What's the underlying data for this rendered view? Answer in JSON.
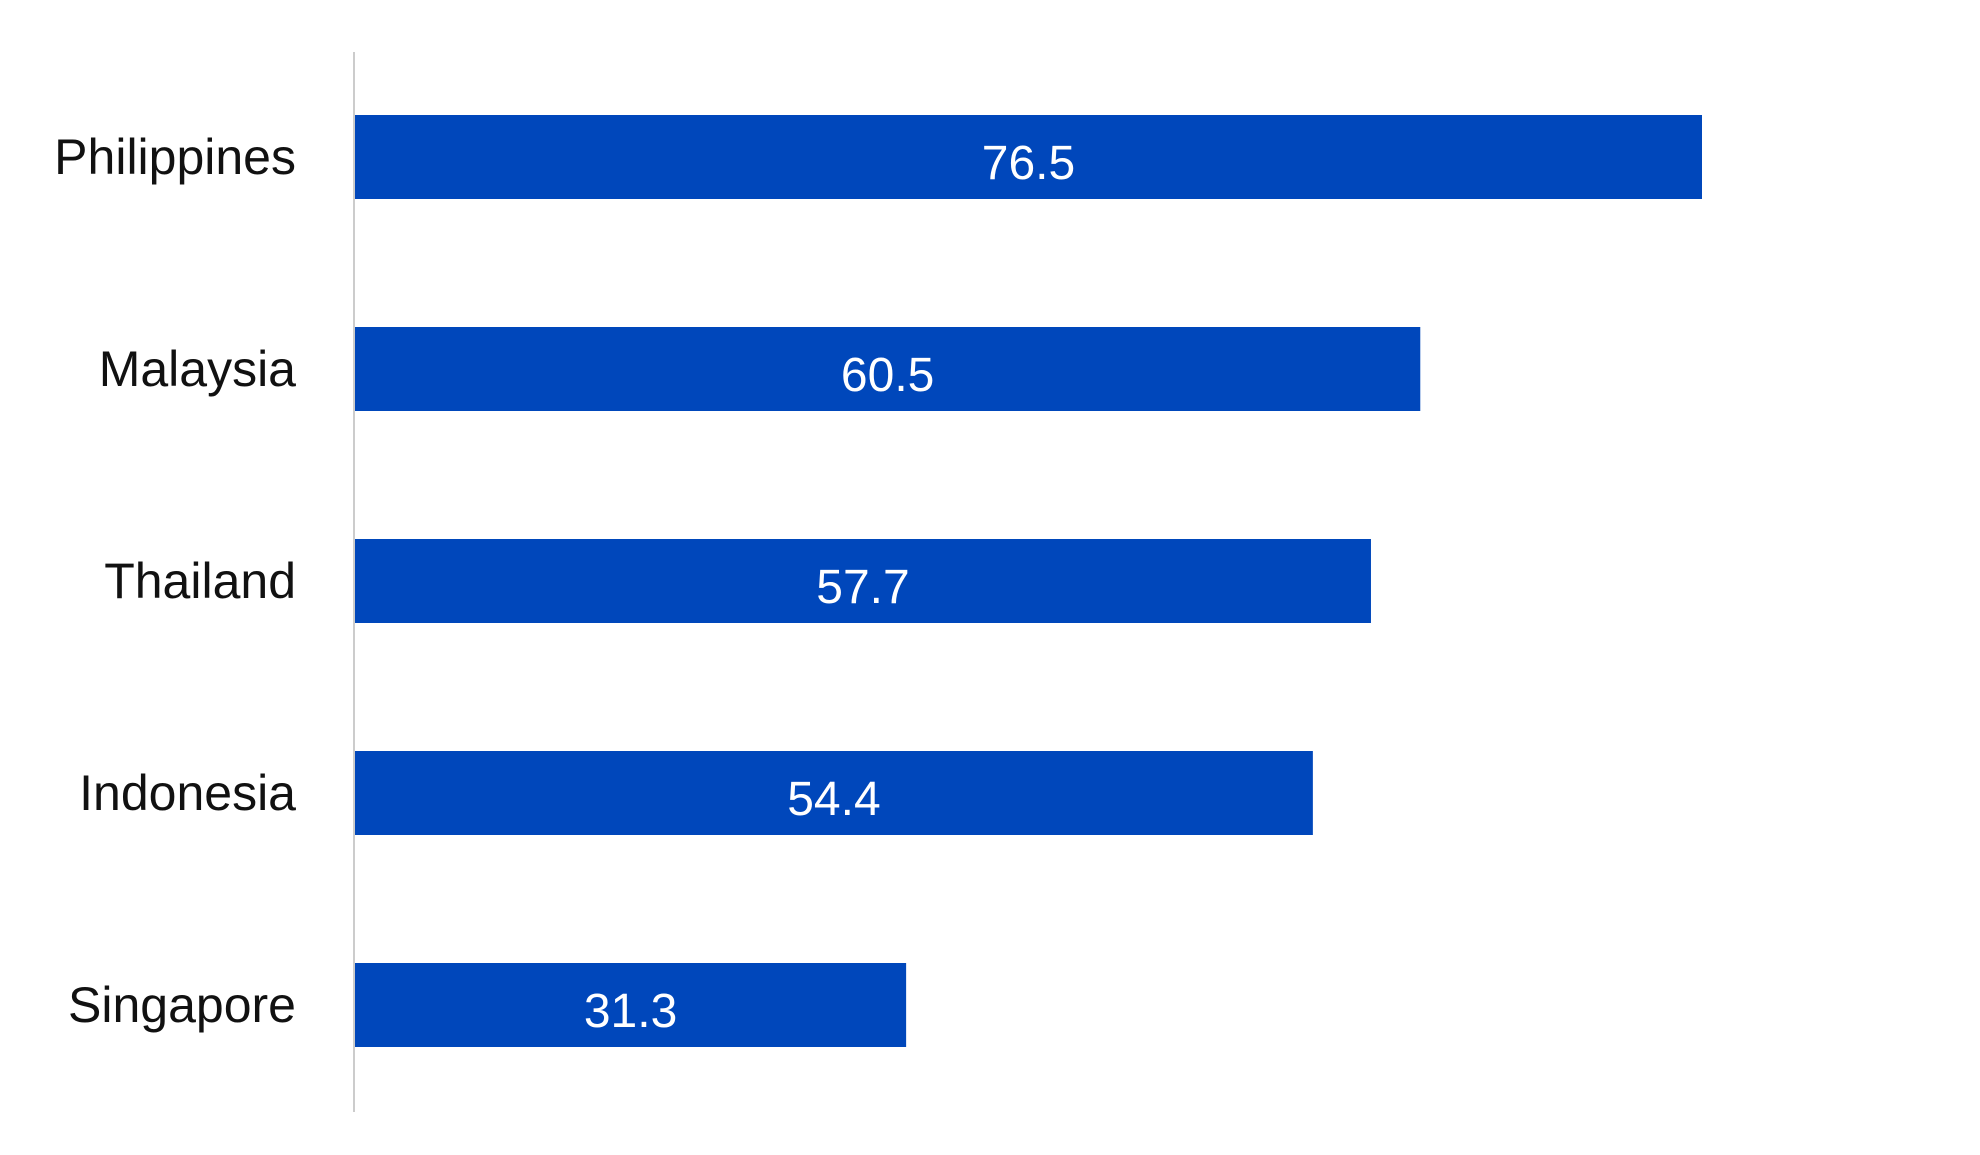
{
  "chart_data": {
    "type": "bar",
    "orientation": "horizontal",
    "categories": [
      "Philippines",
      "Malaysia",
      "Thailand",
      "Indonesia",
      "Singapore"
    ],
    "values": [
      76.5,
      60.5,
      57.7,
      54.4,
      31.3
    ],
    "data_labels": [
      "76.5",
      "60.5",
      "57.7",
      "54.4",
      "31.3"
    ],
    "title": "",
    "xlabel": "",
    "ylabel": "",
    "xlim": [
      0,
      100
    ],
    "grid": false,
    "legend": "none",
    "colors": {
      "bar": "#0047BB",
      "axis": "#cccccc",
      "category_text": "#111111",
      "value_text": "#ffffff"
    }
  }
}
